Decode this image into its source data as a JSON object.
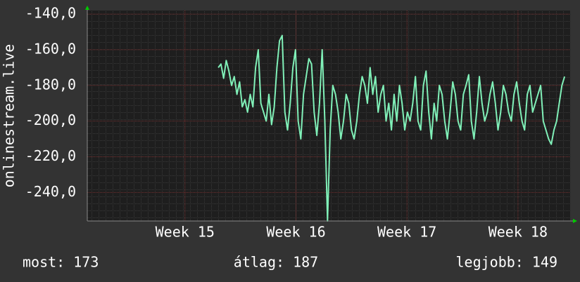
{
  "chart_data": {
    "type": "line",
    "ylabel": "onlinestream.live",
    "xlim": [
      14.12,
      18.47
    ],
    "xticks": [
      {
        "value": 15,
        "label": "Week 15"
      },
      {
        "value": 16,
        "label": "Week 16"
      },
      {
        "value": 17,
        "label": "Week 17"
      },
      {
        "value": 18,
        "label": "Week 18"
      }
    ],
    "ylim": [
      -256,
      -138
    ],
    "yticks": [
      {
        "value": -140,
        "label": "-140,0"
      },
      {
        "value": -160,
        "label": "-160,0"
      },
      {
        "value": -180,
        "label": "-180,0"
      },
      {
        "value": -200,
        "label": "-200,0"
      },
      {
        "value": -220,
        "label": "-220,0"
      },
      {
        "value": -240,
        "label": "-240,0"
      }
    ],
    "grid": true,
    "x": [
      15.3,
      15.324,
      15.348,
      15.372,
      15.396,
      15.42,
      15.444,
      15.468,
      15.492,
      15.516,
      15.54,
      15.564,
      15.588,
      15.612,
      15.636,
      15.66,
      15.684,
      15.708,
      15.732,
      15.756,
      15.78,
      15.804,
      15.828,
      15.852,
      15.876,
      15.9,
      15.924,
      15.948,
      15.972,
      15.996,
      16.02,
      16.044,
      16.068,
      16.092,
      16.116,
      16.14,
      16.164,
      16.188,
      16.212,
      16.236,
      16.26,
      16.284,
      16.308,
      16.332,
      16.356,
      16.38,
      16.404,
      16.428,
      16.452,
      16.476,
      16.5,
      16.524,
      16.548,
      16.572,
      16.596,
      16.62,
      16.644,
      16.668,
      16.692,
      16.716,
      16.74,
      16.764,
      16.788,
      16.812,
      16.836,
      16.86,
      16.884,
      16.908,
      16.932,
      16.956,
      16.98,
      17.004,
      17.028,
      17.052,
      17.076,
      17.1,
      17.124,
      17.148,
      17.172,
      17.196,
      17.22,
      17.244,
      17.268,
      17.292,
      17.316,
      17.34,
      17.364,
      17.388,
      17.412,
      17.436,
      17.46,
      17.484,
      17.508,
      17.532,
      17.556,
      17.58,
      17.604,
      17.628,
      17.652,
      17.676,
      17.7,
      17.724,
      17.748,
      17.772,
      17.796,
      17.82,
      17.844,
      17.868,
      17.892,
      17.916,
      17.94,
      17.964,
      17.988,
      18.012,
      18.036,
      18.06,
      18.084,
      18.108,
      18.132,
      18.156,
      18.18,
      18.204,
      18.228,
      18.252,
      18.276,
      18.3,
      18.324,
      18.348,
      18.372,
      18.396,
      18.42
    ],
    "series": [
      {
        "color": "#80f0b8",
        "values": [
          -170,
          -168,
          -176,
          -166,
          -172,
          -180,
          -175,
          -185,
          -178,
          -192,
          -188,
          -195,
          -185,
          -192,
          -170,
          -160,
          -190,
          -195,
          -200,
          -185,
          -202,
          -192,
          -170,
          -155,
          -152,
          -195,
          -205,
          -190,
          -170,
          -160,
          -200,
          -210,
          -185,
          -175,
          -165,
          -168,
          -195,
          -208,
          -190,
          -160,
          -200,
          -256,
          -205,
          -180,
          -185,
          -195,
          -210,
          -200,
          -185,
          -190,
          -205,
          -210,
          -200,
          -185,
          -175,
          -180,
          -190,
          -170,
          -185,
          -175,
          -195,
          -185,
          -180,
          -200,
          -190,
          -205,
          -185,
          -200,
          -180,
          -190,
          -205,
          -195,
          -200,
          -190,
          -175,
          -200,
          -205,
          -180,
          -172,
          -195,
          -210,
          -190,
          -200,
          -180,
          -185,
          -200,
          -210,
          -195,
          -178,
          -185,
          -200,
          -205,
          -185,
          -180,
          -174,
          -200,
          -210,
          -195,
          -175,
          -190,
          -200,
          -195,
          -185,
          -178,
          -190,
          -205,
          -195,
          -180,
          -185,
          -195,
          -200,
          -185,
          -178,
          -190,
          -200,
          -205,
          -185,
          -180,
          -195,
          -190,
          -185,
          -180,
          -200,
          -205,
          -210,
          -213,
          -205,
          -200,
          -190,
          -180,
          -175
        ]
      }
    ]
  },
  "stats": {
    "current": "most: 173",
    "average": "átlag: 187",
    "best": "legjobb: 149"
  }
}
